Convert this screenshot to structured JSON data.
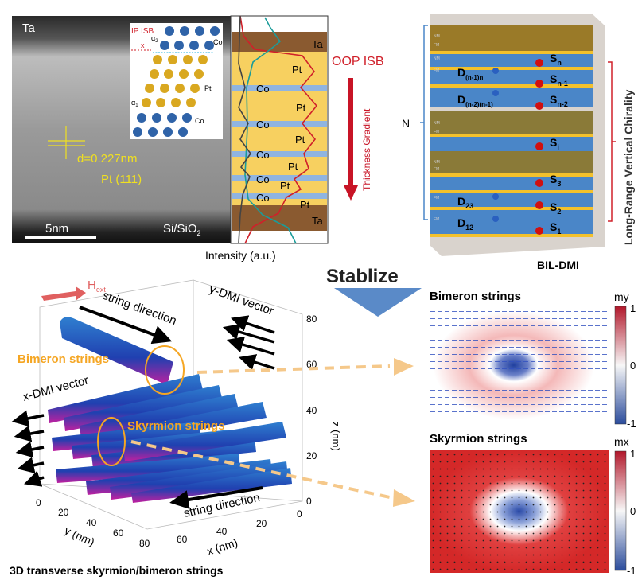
{
  "tem": {
    "top_label": "Ta",
    "bottom_label": "Si/SiO",
    "bottom_sub": "2",
    "scale_bar": "5nm",
    "d_spacing": "d=0.227nm",
    "plane": "Pt (111)",
    "inset": {
      "title": "IP ISB",
      "x_label": "x",
      "alpha2": "α",
      "alpha2_sub": "2",
      "alpha1": "α",
      "alpha1_sub": "1",
      "co_top": "Co",
      "pt": "Pt",
      "co_bottom": "Co"
    }
  },
  "profile": {
    "layers": [
      "Ta",
      "Pt",
      "Co",
      "Pt",
      "Co",
      "Pt",
      "Co",
      "Pt",
      "Co",
      "Pt",
      "Co",
      "Pt",
      "Ta"
    ],
    "xlabel": "Intensity (a.u.)",
    "oop_label": "OOP ISB",
    "gradient_label": "Thickness Gradient"
  },
  "stack": {
    "nm": "NM",
    "fm": "FM",
    "N": "N",
    "spins": [
      {
        "main": "S",
        "sub": "n"
      },
      {
        "main": "S",
        "sub": "n-1"
      },
      {
        "main": "S",
        "sub": "n-2"
      },
      {
        "main": "S",
        "sub": "i"
      },
      {
        "main": "S",
        "sub": "3"
      },
      {
        "main": "S",
        "sub": "2"
      },
      {
        "main": "S",
        "sub": "1"
      }
    ],
    "dmi": [
      {
        "main": "D",
        "sub": "(n-1)n"
      },
      {
        "main": "D",
        "sub": "(n-2)(n-1)"
      },
      {
        "main": "D",
        "sub": "23"
      },
      {
        "main": "D",
        "sub": "12"
      }
    ],
    "chirality_label": "Long-Range Vertical Chirality",
    "caption": "BIL-DMI"
  },
  "stabilize_label": "Stablize",
  "strings3d": {
    "field": "H",
    "field_sub": "ext",
    "string_direction_top": "string direction",
    "string_direction_bottom": "string direction",
    "y_dmi": "y-DMI vector",
    "x_dmi": "x-DMI vector",
    "bimeron": "Bimeron strings",
    "skyrmion": "Skyrmion strings",
    "z_ticks": [
      "0",
      "20",
      "40",
      "60",
      "80"
    ],
    "z_label": "z (nm)",
    "y_ticks": [
      "0",
      "20",
      "40",
      "60",
      "80"
    ],
    "y_label": "y (nm)",
    "x_ticks": [
      "0",
      "20",
      "40",
      "60"
    ],
    "x_label": "x (nm)",
    "caption": "3D transverse skyrmion/bimeron strings"
  },
  "bimeron_map": {
    "title": "Bimeron strings",
    "component": "my",
    "ticks": [
      "1",
      "0",
      "-1"
    ]
  },
  "skyrmion_map": {
    "title": "Skyrmion strings",
    "component": "mx",
    "ticks": [
      "1",
      "0",
      "-1"
    ]
  },
  "colors": {
    "accent_red": "#d0202a",
    "orange": "#f5a623",
    "layer_blue": "#4a86c8",
    "layer_gold": "#f3c12c",
    "ta_brown": "#8a5a30"
  }
}
